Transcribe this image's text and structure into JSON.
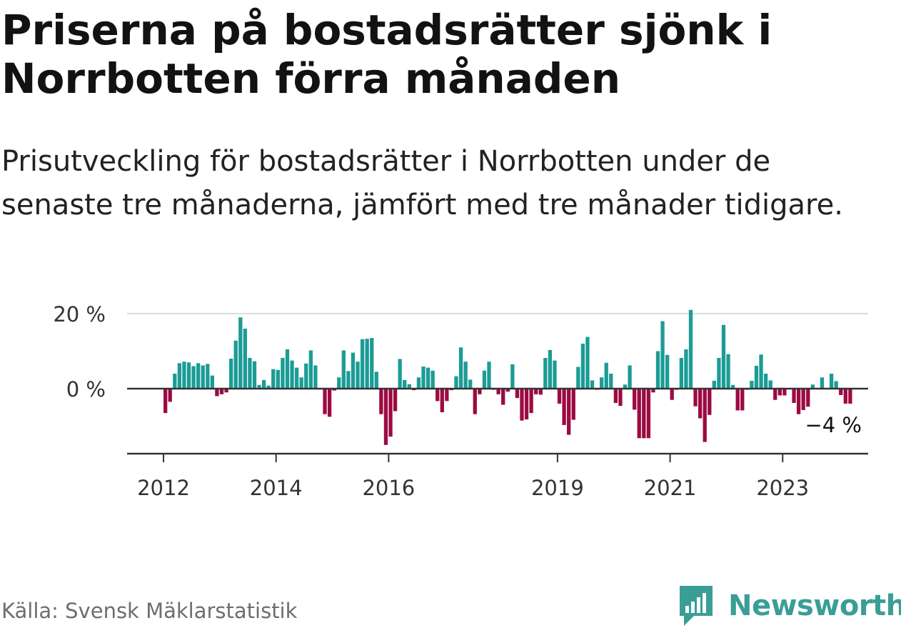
{
  "title": "Priserna på bostadsrätter sjönk i Norrbotten förra månaden",
  "subtitle": "Prisutveckling för bostadsrätter i Norrbotten under de senaste tre månaderna, jämfört med tre månader tidigare.",
  "source": "Källa: Svensk Mäklarstatistik",
  "brand": "Newsworthy",
  "colors": {
    "positive": "#1b9c95",
    "negative": "#9c0a42",
    "gridline": "#dddddd",
    "axis": "#333333",
    "brand": "#3a9e97"
  },
  "chart_data": {
    "type": "bar",
    "title": "Prisutveckling för bostadsrätter i Norrbotten",
    "xlabel": "",
    "ylabel": "",
    "ylim": [
      -17,
      20
    ],
    "y_ticks": [
      {
        "value": 0,
        "label": "0 %"
      },
      {
        "value": 20,
        "label": "20 %"
      }
    ],
    "x_ticks": [
      {
        "index": 0,
        "label": "2012"
      },
      {
        "index": 24,
        "label": "2014"
      },
      {
        "index": 48,
        "label": "2016"
      },
      {
        "index": 84,
        "label": "2019"
      },
      {
        "index": 108,
        "label": "2021"
      },
      {
        "index": 132,
        "label": "2023"
      }
    ],
    "last_value_label": "−4 %",
    "start_period": "2012-01",
    "values": [
      -6.5,
      -3.5,
      4,
      6.8,
      7.2,
      7,
      6,
      6.8,
      6.2,
      6.6,
      3.5,
      -2,
      -1.5,
      -1,
      8,
      12.8,
      19,
      16,
      8.2,
      7.3,
      1,
      2.3,
      0.8,
      5.2,
      5,
      8.2,
      10.5,
      7.5,
      5.6,
      3,
      6.7,
      10.2,
      6.2,
      -0.2,
      -6.8,
      -7.5,
      -0.5,
      3,
      10.2,
      4.7,
      9.6,
      7.2,
      13.2,
      13.3,
      13.5,
      4.5,
      -6.8,
      -15,
      -12.8,
      -6,
      7.9,
      2.3,
      1.2,
      -0.4,
      3,
      5.9,
      5.6,
      4.8,
      -3.3,
      -6.3,
      -3.3,
      -0.4,
      3.3,
      11,
      7.2,
      2.4,
      -6.8,
      -1.5,
      4.8,
      7.2,
      -0.3,
      -1.5,
      -4.3,
      -0.8,
      6.5,
      -2.5,
      -8.5,
      -8.2,
      -6.5,
      -1.5,
      -1.6,
      8.2,
      10.3,
      7.5,
      -4,
      -9.7,
      -12.3,
      -8.3,
      5.8,
      12,
      13.8,
      2.2,
      -0.3,
      3,
      6.9,
      4,
      -3.8,
      -4.6,
      1.1,
      6.2,
      -5.6,
      -13.2,
      -13.2,
      -13.2,
      -1,
      10,
      18,
      9,
      -3,
      -0.3,
      8.2,
      10.5,
      21,
      -4.7,
      -7.9,
      -14.2,
      -7,
      2.1,
      8.2,
      17,
      9.2,
      1,
      -5.8,
      -5.8,
      -0.3,
      2.1,
      6.1,
      9.1,
      4,
      2.2,
      -3,
      -1.8,
      -1.8,
      -0.2,
      -3.8,
      -6.8,
      -5.7,
      -4.8,
      1.1,
      0,
      3,
      0,
      4,
      2,
      -1.7,
      -4,
      -4
    ]
  }
}
